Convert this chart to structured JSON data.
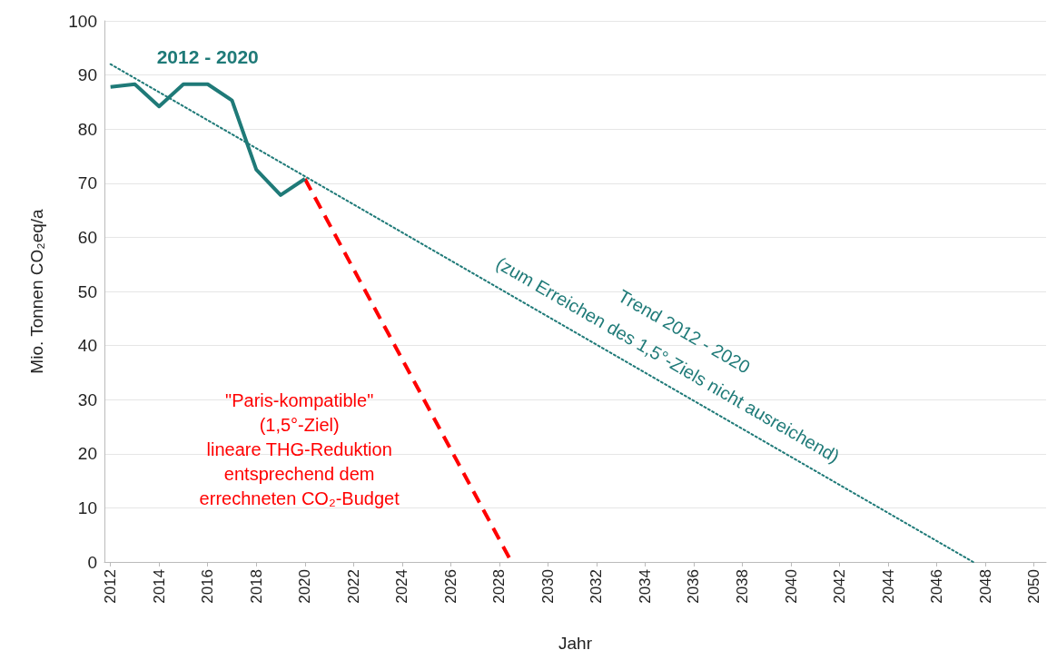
{
  "chart_data": {
    "type": "line",
    "xlabel": "Jahr",
    "ylabel": "Mio. Tonnen CO₂eq/a",
    "xlim": [
      2011.75,
      2050.5
    ],
    "xticks": [
      2012,
      2014,
      2016,
      2018,
      2020,
      2022,
      2024,
      2026,
      2028,
      2030,
      2032,
      2034,
      2036,
      2038,
      2040,
      2042,
      2044,
      2046,
      2048,
      2050
    ],
    "ylim": [
      0,
      100
    ],
    "yticks": [
      0,
      10,
      20,
      30,
      40,
      50,
      60,
      70,
      80,
      90,
      100
    ],
    "grid": "y",
    "legend": false,
    "marker": "none",
    "series": [
      {
        "name": "2012 - 2020",
        "color": "#1f7a78",
        "line_style": "solid",
        "x": [
          2012,
          2013,
          2014,
          2015,
          2016,
          2017,
          2018,
          2019,
          2020
        ],
        "values": [
          87.8,
          88.3,
          84.2,
          88.3,
          88.3,
          85.3,
          72.5,
          67.8,
          70.8
        ]
      },
      {
        "color": "#ff0000",
        "line_style": "dashed",
        "x": [
          2020,
          2028.5
        ],
        "values": [
          70.8,
          0
        ]
      },
      {
        "color": "#1f7a78",
        "line_style": "dotted",
        "x": [
          2012,
          2047.5
        ],
        "values": [
          92,
          0
        ]
      }
    ],
    "annotations": [
      "\"Paris-kompatible\"\n(1,5°-Ziel)\nlineare THG-Reduktion\nentsprechend dem\nerrechneten CO₂-Budget",
      "Trend 2012 - 2020\n(zum Erreichen des 1,5°-Ziels nicht ausreichend)"
    ]
  }
}
